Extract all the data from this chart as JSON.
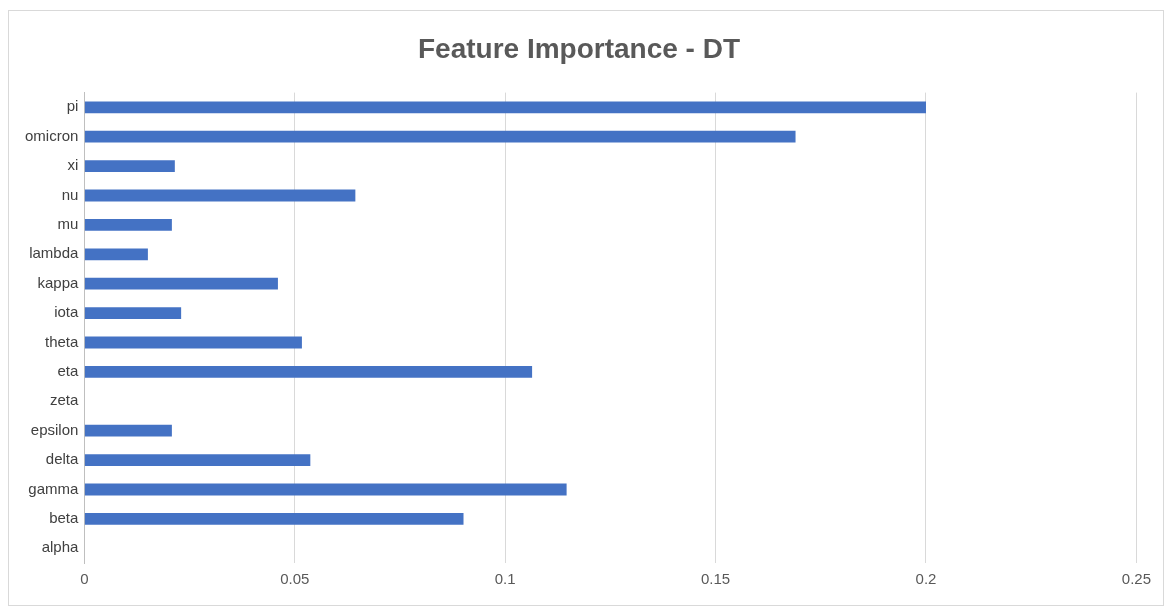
{
  "chart_data": {
    "type": "bar",
    "orientation": "horizontal",
    "title": "Feature Importance - DT",
    "categories": [
      "pi",
      "omicron",
      "xi",
      "nu",
      "mu",
      "lambda",
      "kappa",
      "iota",
      "theta",
      "eta",
      "zeta",
      "epsilon",
      "delta",
      "gamma",
      "beta",
      "alpha"
    ],
    "values": [
      0.2,
      0.169,
      0.0215,
      0.0644,
      0.0208,
      0.0151,
      0.046,
      0.023,
      0.0517,
      0.1064,
      0,
      0.0208,
      0.0537,
      0.1146,
      0.0901,
      0
    ],
    "color": "#4472c4",
    "xlim": [
      0,
      0.25
    ],
    "xticks": [
      0,
      0.05,
      0.1,
      0.15,
      0.2,
      0.25
    ],
    "grid": "x",
    "legend": false
  }
}
